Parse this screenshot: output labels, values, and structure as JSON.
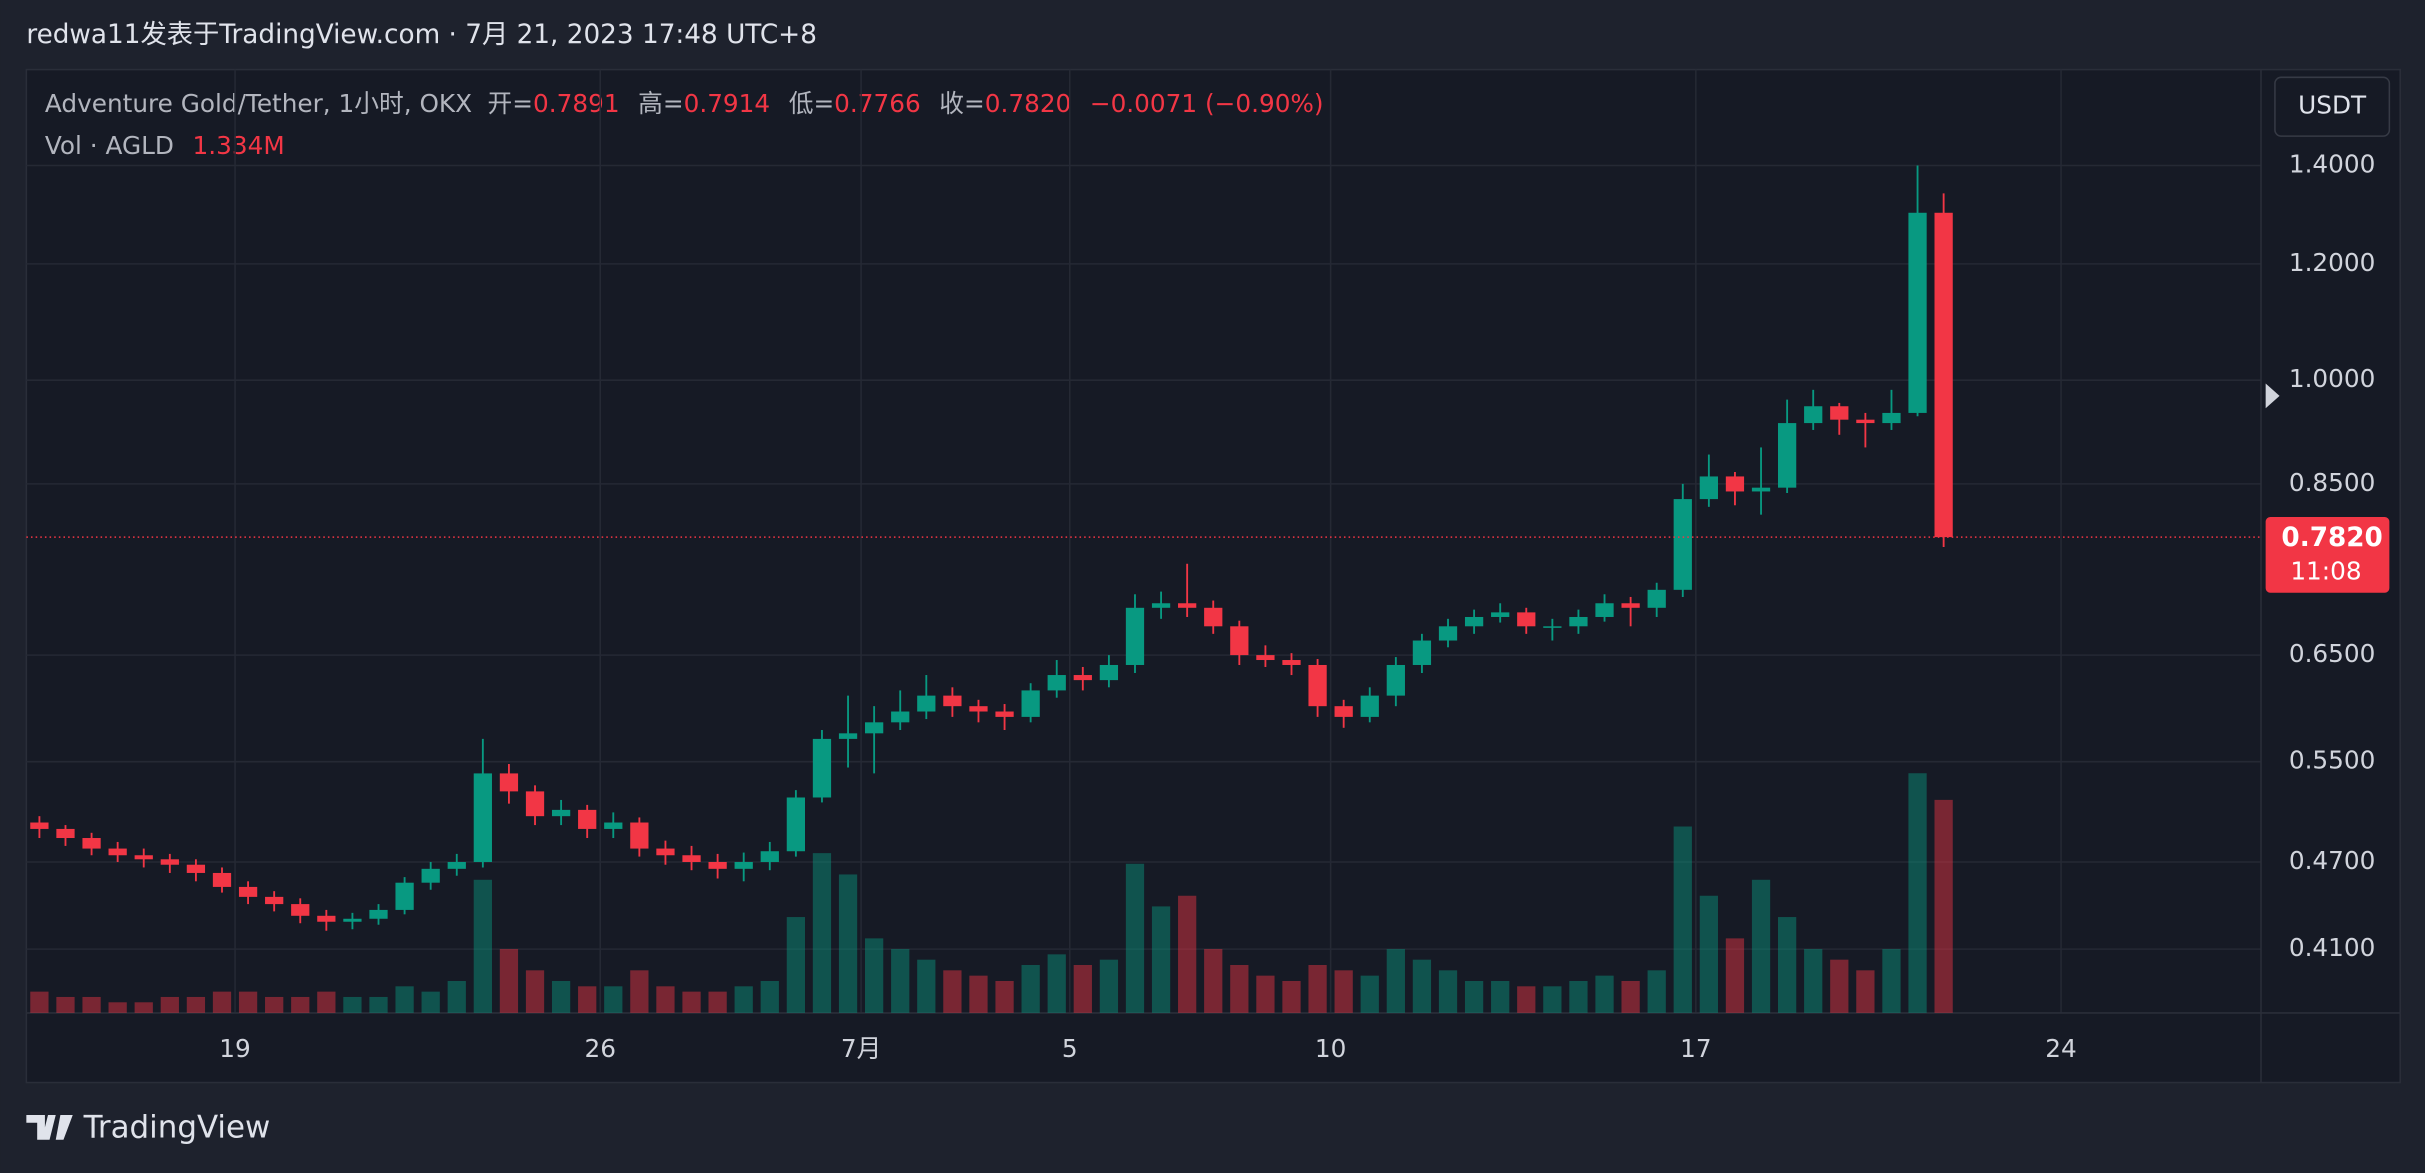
{
  "header": {
    "byline": "redwa11发表于TradingView.com · 7月 21, 2023 17:48 UTC+8",
    "symbol": "Adventure Gold/Tether, 1小时, OKX",
    "ohlc": [
      {
        "label": "开=",
        "value": "0.7891"
      },
      {
        "label": "高=",
        "value": "0.7914"
      },
      {
        "label": "低=",
        "value": "0.7766"
      },
      {
        "label": "收=",
        "value": "0.7820"
      }
    ],
    "change": "−0.0071 (−0.90%)",
    "volume_label": "Vol · AGLD",
    "volume_value": "1.334M",
    "currency": "USDT",
    "countdown": "11:08",
    "logo": "TradingView"
  },
  "chart_data": {
    "type": "candlestick",
    "log_scale": true,
    "grid": true,
    "up_color": "#089981",
    "down_color": "#f23645",
    "last_price": {
      "value": 0.782,
      "label": "0.7820"
    },
    "ylim": [
      0.371,
      1.627
    ],
    "yticks": [
      {
        "value": 1.4,
        "label": "1.4000"
      },
      {
        "value": 1.2,
        "label": "1.2000"
      },
      {
        "value": 1.0,
        "label": "1.0000"
      },
      {
        "value": 0.85,
        "label": "0.8500"
      },
      {
        "value": 0.65,
        "label": "0.6500"
      },
      {
        "value": 0.55,
        "label": "0.5500"
      },
      {
        "value": 0.47,
        "label": "0.4700"
      },
      {
        "value": 0.41,
        "label": "0.4100"
      }
    ],
    "xlim": [
      "2023-06-15T00:00",
      "2023-07-27T20:00"
    ],
    "xticks": [
      {
        "value": "2023-06-19T00:00",
        "label": "19"
      },
      {
        "value": "2023-06-26T00:00",
        "label": "26"
      },
      {
        "value": "2023-07-01T00:00",
        "label": "7月"
      },
      {
        "value": "2023-07-05T00:00",
        "label": "5"
      },
      {
        "value": "2023-07-10T00:00",
        "label": "10"
      },
      {
        "value": "2023-07-17T00:00",
        "label": "17"
      },
      {
        "value": "2023-07-24T00:00",
        "label": "24"
      }
    ],
    "x": [
      "2023-06-15T00:00",
      "2023-06-15T12:00",
      "2023-06-16T00:00",
      "2023-06-16T12:00",
      "2023-06-17T00:00",
      "2023-06-17T12:00",
      "2023-06-18T00:00",
      "2023-06-18T12:00",
      "2023-06-19T00:00",
      "2023-06-19T12:00",
      "2023-06-20T00:00",
      "2023-06-20T12:00",
      "2023-06-21T00:00",
      "2023-06-21T12:00",
      "2023-06-22T00:00",
      "2023-06-22T12:00",
      "2023-06-23T00:00",
      "2023-06-23T12:00",
      "2023-06-24T00:00",
      "2023-06-24T12:00",
      "2023-06-25T00:00",
      "2023-06-25T12:00",
      "2023-06-26T00:00",
      "2023-06-26T12:00",
      "2023-06-27T00:00",
      "2023-06-27T12:00",
      "2023-06-28T00:00",
      "2023-06-28T12:00",
      "2023-06-29T00:00",
      "2023-06-29T12:00",
      "2023-06-30T00:00",
      "2023-06-30T12:00",
      "2023-07-01T00:00",
      "2023-07-01T12:00",
      "2023-07-02T00:00",
      "2023-07-02T12:00",
      "2023-07-03T00:00",
      "2023-07-03T12:00",
      "2023-07-04T00:00",
      "2023-07-04T12:00",
      "2023-07-05T00:00",
      "2023-07-05T12:00",
      "2023-07-06T00:00",
      "2023-07-06T12:00",
      "2023-07-07T00:00",
      "2023-07-07T12:00",
      "2023-07-08T00:00",
      "2023-07-08T12:00",
      "2023-07-09T00:00",
      "2023-07-09T12:00",
      "2023-07-10T00:00",
      "2023-07-10T12:00",
      "2023-07-11T00:00",
      "2023-07-11T12:00",
      "2023-07-12T00:00",
      "2023-07-12T12:00",
      "2023-07-13T00:00",
      "2023-07-13T12:00",
      "2023-07-14T00:00",
      "2023-07-14T12:00",
      "2023-07-15T00:00",
      "2023-07-15T12:00",
      "2023-07-16T00:00",
      "2023-07-16T12:00",
      "2023-07-17T00:00",
      "2023-07-17T12:00",
      "2023-07-18T00:00",
      "2023-07-18T12:00",
      "2023-07-19T00:00",
      "2023-07-19T12:00",
      "2023-07-20T00:00",
      "2023-07-20T12:00",
      "2023-07-21T00:00",
      "2023-07-21T12:00"
    ],
    "open": [
      0.5,
      0.495,
      0.488,
      0.48,
      0.475,
      0.472,
      0.468,
      0.462,
      0.452,
      0.445,
      0.44,
      0.432,
      0.428,
      0.43,
      0.436,
      0.455,
      0.465,
      0.47,
      0.54,
      0.525,
      0.505,
      0.51,
      0.495,
      0.5,
      0.48,
      0.475,
      0.47,
      0.465,
      0.47,
      0.478,
      0.52,
      0.57,
      0.575,
      0.585,
      0.595,
      0.61,
      0.6,
      0.595,
      0.59,
      0.615,
      0.63,
      0.625,
      0.64,
      0.7,
      0.705,
      0.7,
      0.68,
      0.65,
      0.645,
      0.64,
      0.6,
      0.59,
      0.61,
      0.64,
      0.665,
      0.68,
      0.69,
      0.695,
      0.68,
      0.68,
      0.69,
      0.705,
      0.7,
      0.72,
      0.83,
      0.86,
      0.84,
      0.845,
      0.935,
      0.96,
      0.94,
      0.935,
      0.95,
      1.3
    ],
    "high": [
      0.505,
      0.498,
      0.492,
      0.485,
      0.48,
      0.476,
      0.472,
      0.466,
      0.456,
      0.449,
      0.444,
      0.436,
      0.434,
      0.44,
      0.459,
      0.47,
      0.476,
      0.57,
      0.548,
      0.53,
      0.518,
      0.514,
      0.508,
      0.504,
      0.486,
      0.482,
      0.476,
      0.477,
      0.485,
      0.526,
      0.578,
      0.61,
      0.6,
      0.615,
      0.63,
      0.618,
      0.606,
      0.602,
      0.622,
      0.645,
      0.638,
      0.65,
      0.715,
      0.718,
      0.75,
      0.708,
      0.686,
      0.66,
      0.652,
      0.646,
      0.606,
      0.618,
      0.648,
      0.672,
      0.688,
      0.698,
      0.705,
      0.7,
      0.688,
      0.698,
      0.715,
      0.712,
      0.728,
      0.85,
      0.89,
      0.866,
      0.9,
      0.97,
      0.985,
      0.965,
      0.95,
      0.985,
      1.4,
      1.34
    ],
    "low": [
      0.488,
      0.482,
      0.475,
      0.47,
      0.466,
      0.462,
      0.456,
      0.448,
      0.44,
      0.435,
      0.427,
      0.422,
      0.423,
      0.426,
      0.433,
      0.45,
      0.46,
      0.466,
      0.515,
      0.498,
      0.498,
      0.488,
      0.488,
      0.474,
      0.468,
      0.464,
      0.458,
      0.456,
      0.464,
      0.474,
      0.516,
      0.545,
      0.54,
      0.578,
      0.588,
      0.59,
      0.585,
      0.578,
      0.585,
      0.608,
      0.615,
      0.618,
      0.632,
      0.688,
      0.69,
      0.672,
      0.64,
      0.638,
      0.63,
      0.59,
      0.58,
      0.585,
      0.6,
      0.632,
      0.658,
      0.672,
      0.684,
      0.672,
      0.665,
      0.672,
      0.685,
      0.68,
      0.69,
      0.712,
      0.82,
      0.822,
      0.81,
      0.838,
      0.925,
      0.918,
      0.9,
      0.925,
      0.945,
      0.77
    ],
    "close": [
      0.495,
      0.488,
      0.48,
      0.475,
      0.472,
      0.468,
      0.462,
      0.452,
      0.445,
      0.44,
      0.432,
      0.428,
      0.43,
      0.436,
      0.455,
      0.465,
      0.47,
      0.54,
      0.525,
      0.505,
      0.51,
      0.495,
      0.5,
      0.48,
      0.475,
      0.47,
      0.465,
      0.47,
      0.478,
      0.52,
      0.57,
      0.575,
      0.585,
      0.595,
      0.61,
      0.6,
      0.595,
      0.59,
      0.615,
      0.63,
      0.625,
      0.64,
      0.7,
      0.705,
      0.7,
      0.68,
      0.65,
      0.645,
      0.64,
      0.6,
      0.59,
      0.61,
      0.64,
      0.665,
      0.68,
      0.69,
      0.695,
      0.68,
      0.68,
      0.69,
      0.705,
      0.7,
      0.72,
      0.83,
      0.86,
      0.84,
      0.845,
      0.935,
      0.96,
      0.94,
      0.935,
      0.95,
      1.3,
      0.782
    ],
    "volume": [
      4,
      3,
      3,
      2,
      2,
      3,
      3,
      4,
      4,
      3,
      3,
      4,
      3,
      3,
      5,
      4,
      6,
      25,
      12,
      8,
      6,
      5,
      5,
      8,
      5,
      4,
      4,
      5,
      6,
      18,
      30,
      26,
      14,
      12,
      10,
      8,
      7,
      6,
      9,
      11,
      9,
      10,
      28,
      20,
      22,
      12,
      9,
      7,
      6,
      9,
      8,
      7,
      12,
      10,
      8,
      6,
      6,
      5,
      5,
      6,
      7,
      6,
      8,
      35,
      22,
      14,
      25,
      18,
      12,
      10,
      8,
      12,
      45,
      40
    ]
  }
}
